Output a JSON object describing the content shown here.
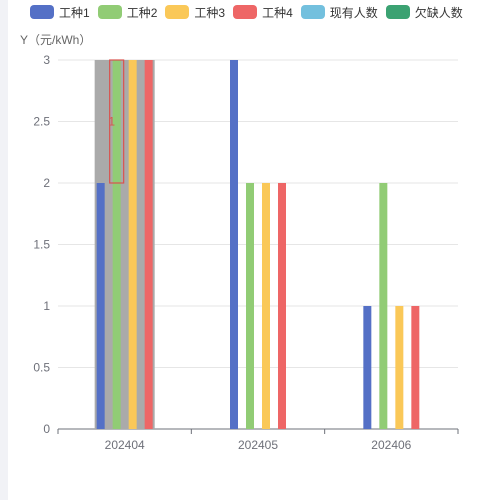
{
  "legend": [
    {
      "label": "工种1",
      "color": "#5470c6"
    },
    {
      "label": "工种2",
      "color": "#91cc75"
    },
    {
      "label": "工种3",
      "color": "#fac858"
    },
    {
      "label": "工种4",
      "color": "#ee6666"
    },
    {
      "label": "现有人数",
      "color": "#73c0de"
    },
    {
      "label": "欠缺人数",
      "color": "#3ba272"
    }
  ],
  "chart_data": {
    "type": "bar",
    "ylabel": "Y（元/kWh）",
    "ylim": [
      0,
      3
    ],
    "yticks": [
      "0",
      "0.5",
      "1",
      "1.5",
      "2",
      "2.5",
      "3"
    ],
    "categories": [
      "202404",
      "202405",
      "202406"
    ],
    "series": [
      {
        "name": "工种1",
        "color": "#5470c6",
        "values": [
          2,
          3,
          1
        ]
      },
      {
        "name": "工种2",
        "color": "#91cc75",
        "values": [
          3,
          2,
          2
        ]
      },
      {
        "name": "工种3",
        "color": "#fac858",
        "values": [
          3,
          2,
          1
        ]
      },
      {
        "name": "工种4",
        "color": "#ee6666",
        "values": [
          3,
          2,
          1
        ]
      }
    ],
    "highlight": {
      "category": "202404",
      "value": 3,
      "color": "#aaaaaa"
    },
    "annotation": {
      "category": "202404",
      "series": "工种2",
      "from": 2,
      "to": 3,
      "label": "1",
      "color": "#d9534f"
    },
    "grid": true,
    "legend_position": "top"
  }
}
